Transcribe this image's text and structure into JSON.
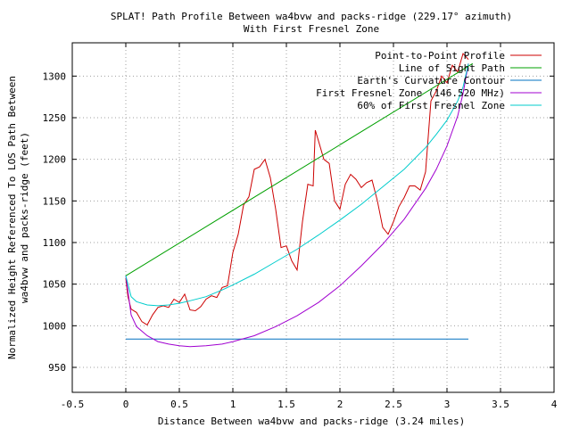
{
  "chart_data": {
    "type": "line",
    "title": "SPLAT! Path Profile Between wa4bvw and packs-ridge (229.17° azimuth)",
    "subtitle": "With First Fresnel Zone",
    "xlabel": "Distance Between wa4bvw and packs-ridge (3.24 miles)",
    "ylabel_line1": "Normalized Height Referenced To LOS Path Between",
    "ylabel_line2": "wa4bvw and packs-ridge (feet)",
    "xlim": [
      -0.5,
      4
    ],
    "ylim": [
      920,
      1340
    ],
    "xticks": [
      -0.5,
      0,
      0.5,
      1,
      1.5,
      2,
      2.5,
      3,
      3.5,
      4
    ],
    "xtick_labels": [
      "-0.5",
      "0",
      "0.5",
      "1",
      "1.5",
      "2",
      "2.5",
      "3",
      "3.5",
      "4"
    ],
    "yticks": [
      950,
      1000,
      1050,
      1100,
      1150,
      1200,
      1250,
      1300
    ],
    "ytick_labels": [
      "950",
      "1000",
      "1050",
      "1100",
      "1150",
      "1200",
      "1250",
      "1300"
    ],
    "grid": true,
    "legend_position": "top-right",
    "series": [
      {
        "name": "Point-to-Point Profile",
        "color": "#cc0000",
        "x": [
          0,
          0.02,
          0.05,
          0.1,
          0.15,
          0.2,
          0.25,
          0.3,
          0.35,
          0.4,
          0.45,
          0.5,
          0.55,
          0.6,
          0.65,
          0.7,
          0.75,
          0.8,
          0.85,
          0.9,
          0.95,
          1.0,
          1.05,
          1.1,
          1.15,
          1.2,
          1.25,
          1.3,
          1.35,
          1.4,
          1.45,
          1.5,
          1.55,
          1.6,
          1.65,
          1.7,
          1.75,
          1.77,
          1.8,
          1.85,
          1.9,
          1.95,
          2.0,
          2.05,
          2.1,
          2.15,
          2.2,
          2.25,
          2.3,
          2.35,
          2.4,
          2.45,
          2.5,
          2.55,
          2.6,
          2.65,
          2.7,
          2.75,
          2.8,
          2.85,
          2.9,
          2.95,
          3.0,
          3.05,
          3.1,
          3.15,
          3.2
        ],
        "y": [
          1057,
          1035,
          1020,
          1016,
          1005,
          1001,
          1013,
          1022,
          1024,
          1022,
          1032,
          1028,
          1038,
          1019,
          1018,
          1023,
          1032,
          1036,
          1034,
          1046,
          1048,
          1088,
          1110,
          1145,
          1155,
          1188,
          1191,
          1200,
          1178,
          1140,
          1094,
          1096,
          1078,
          1067,
          1125,
          1170,
          1168,
          1235,
          1222,
          1200,
          1195,
          1150,
          1140,
          1170,
          1182,
          1176,
          1166,
          1172,
          1175,
          1150,
          1118,
          1110,
          1125,
          1143,
          1154,
          1168,
          1168,
          1163,
          1185,
          1270,
          1282,
          1300,
          1292,
          1313,
          1305,
          1327,
          1320
        ]
      },
      {
        "name": "Line of Sight Path",
        "color": "#00a000",
        "x": [
          0,
          3.24
        ],
        "y": [
          1060,
          1315
        ]
      },
      {
        "name": "Earth's Curvature Contour",
        "color": "#0070c0",
        "x": [
          0,
          0.5,
          1.0,
          1.5,
          2.0,
          2.5,
          3.0,
          3.2
        ],
        "y": [
          984,
          984,
          984,
          984,
          984,
          984,
          984,
          984
        ]
      },
      {
        "name": "First Fresnel Zone (146.520 MHz)",
        "color": "#a000d0",
        "x": [
          0,
          0.05,
          0.1,
          0.2,
          0.3,
          0.4,
          0.5,
          0.6,
          0.75,
          0.9,
          1.0,
          1.2,
          1.4,
          1.6,
          1.8,
          2.0,
          2.2,
          2.4,
          2.6,
          2.8,
          2.9,
          3.0,
          3.1,
          3.15,
          3.2
        ],
        "y": [
          1060,
          1013,
          999,
          988,
          981,
          978,
          976,
          975,
          976,
          978,
          981,
          988,
          999,
          1012,
          1028,
          1048,
          1072,
          1098,
          1128,
          1165,
          1188,
          1216,
          1252,
          1279,
          1315
        ]
      },
      {
        "name": "60% of First Fresnel Zone",
        "color": "#00cccc",
        "x": [
          0,
          0.05,
          0.1,
          0.2,
          0.3,
          0.4,
          0.5,
          0.6,
          0.75,
          0.9,
          1.0,
          1.2,
          1.4,
          1.6,
          1.8,
          2.0,
          2.2,
          2.4,
          2.6,
          2.8,
          2.9,
          3.0,
          3.1,
          3.15,
          3.2
        ],
        "y": [
          1060,
          1035,
          1029,
          1025,
          1024,
          1025,
          1027,
          1030,
          1035,
          1043,
          1049,
          1062,
          1077,
          1092,
          1109,
          1127,
          1146,
          1167,
          1188,
          1214,
          1230,
          1247,
          1270,
          1287,
          1315
        ]
      }
    ]
  }
}
